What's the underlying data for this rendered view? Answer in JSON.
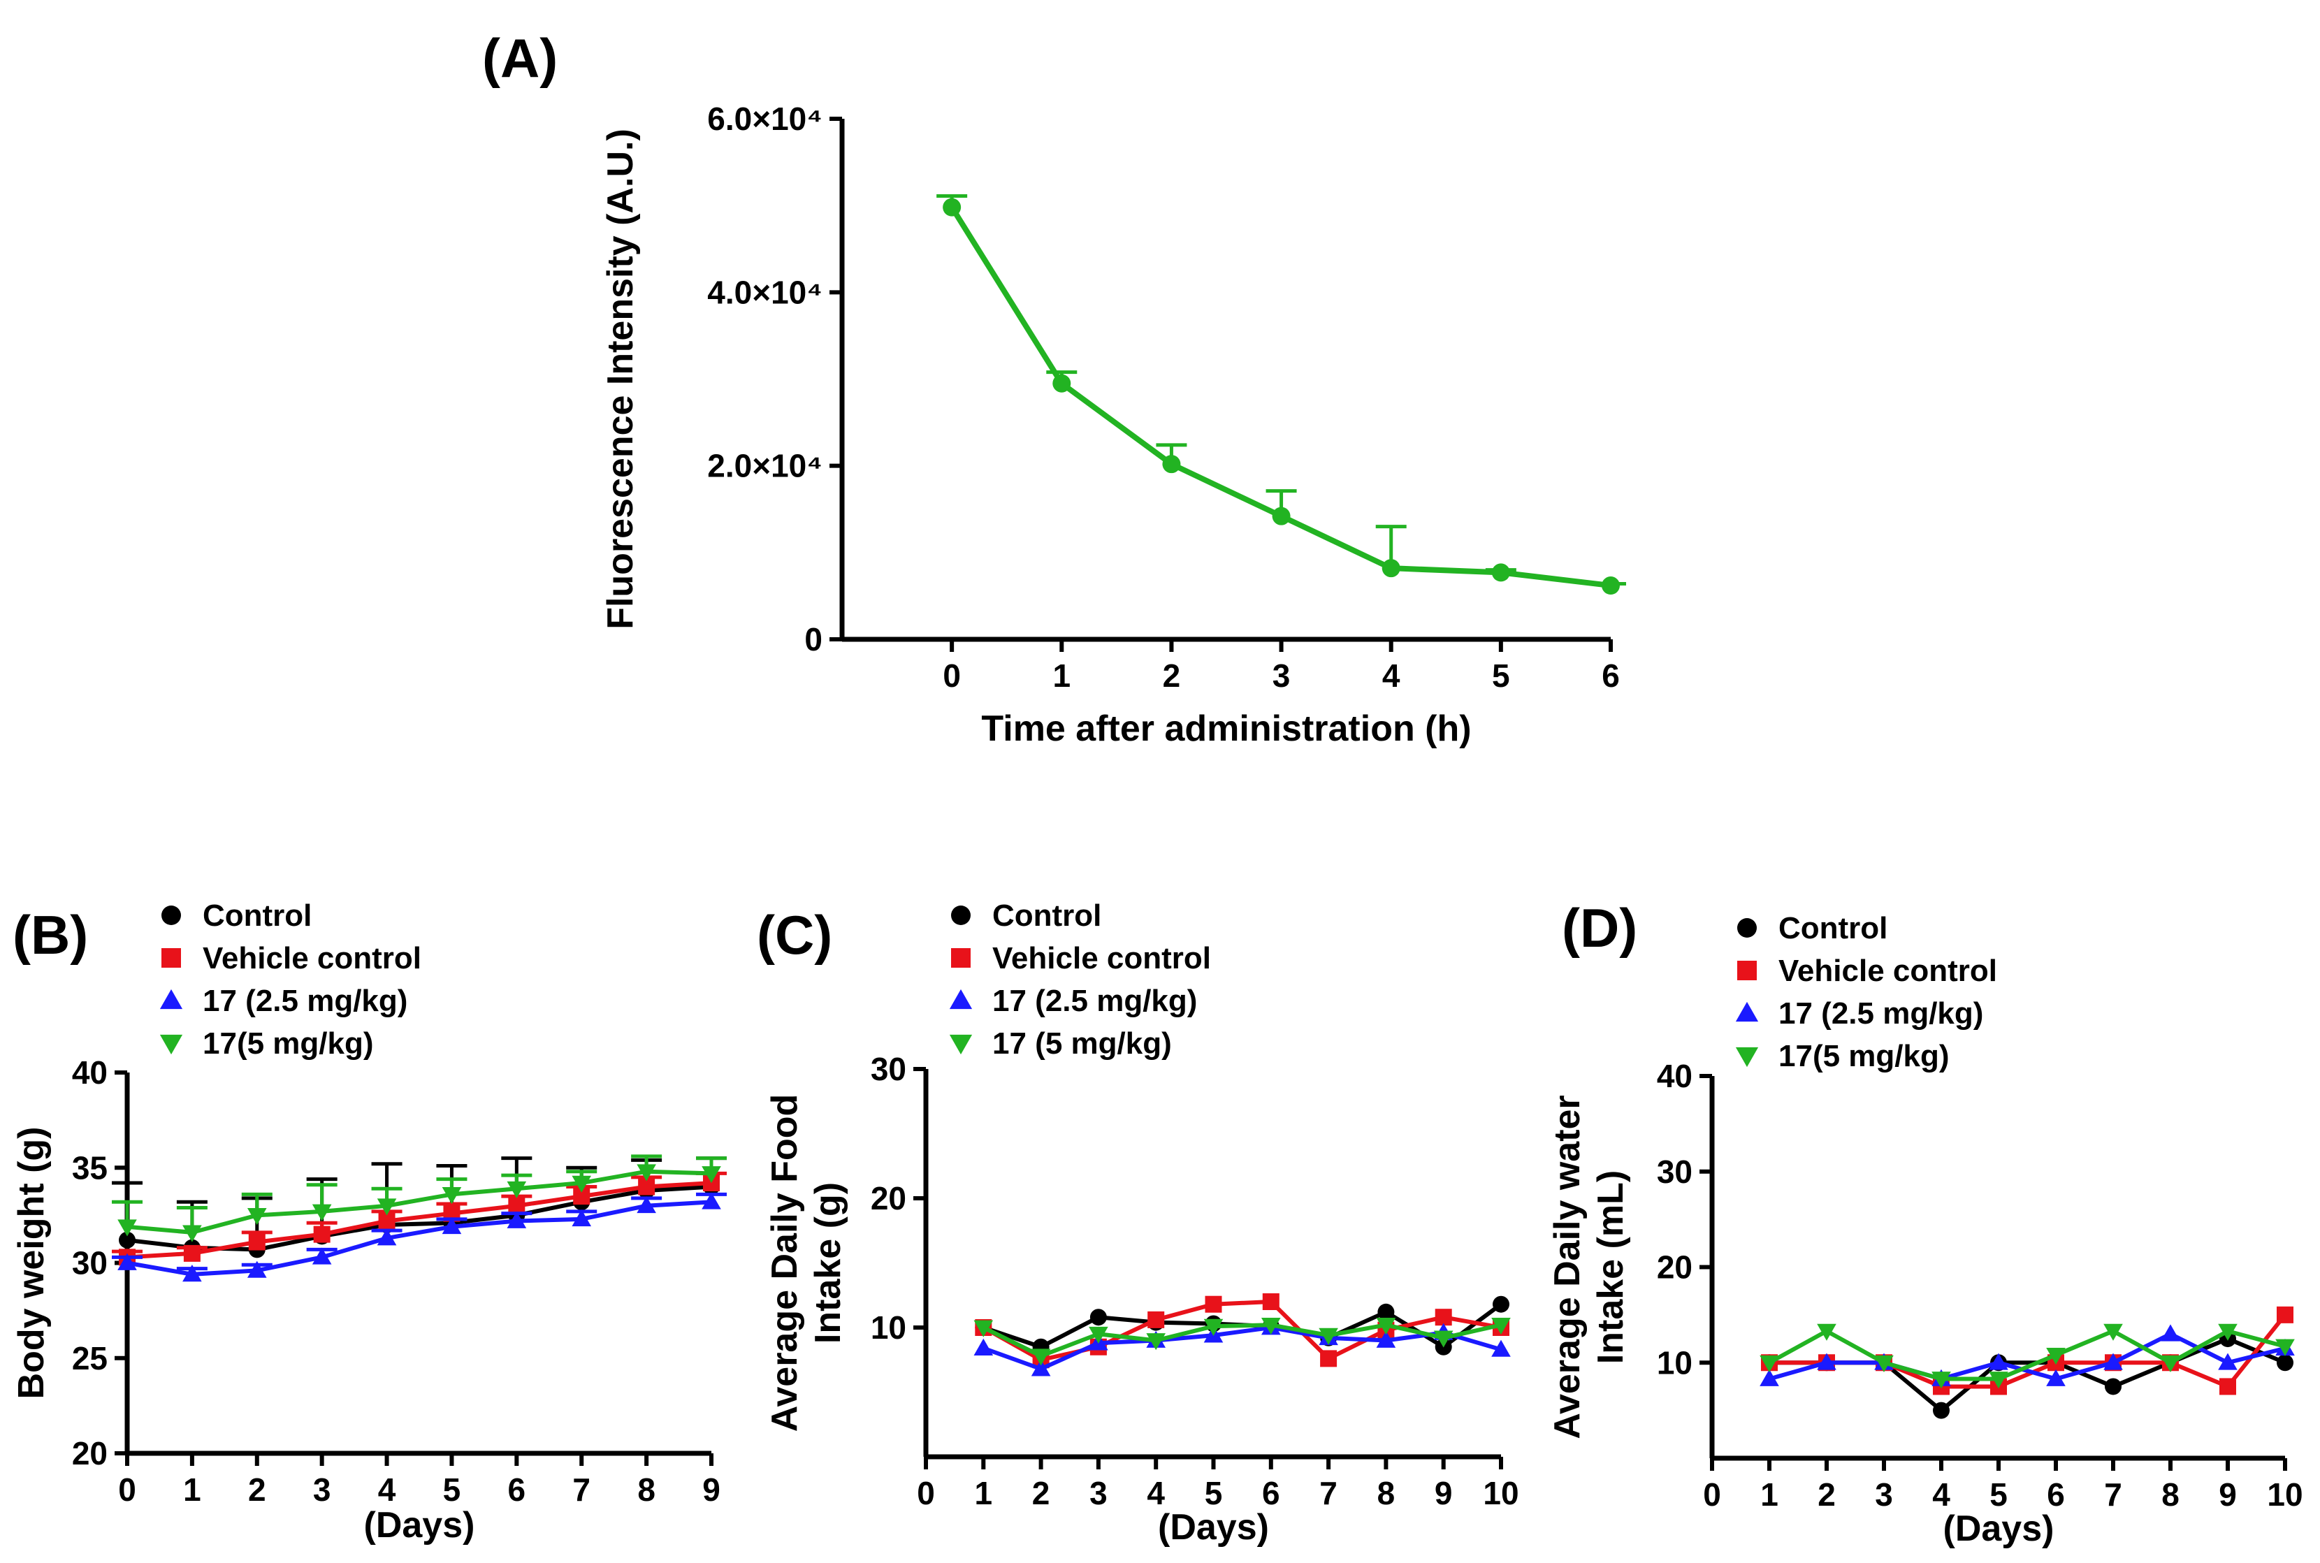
{
  "chart_data": [
    {
      "id": "A",
      "type": "line",
      "panel_label": "(A)",
      "title": "",
      "xlabel": "Time after administration (h)",
      "ylabel": "Fluorescence Intensity (A.U.)",
      "xlim": [
        -1,
        6
      ],
      "ylim": [
        0,
        60000
      ],
      "xticks": [
        0,
        1,
        2,
        3,
        4,
        5,
        6
      ],
      "yticks": [
        0,
        20000,
        40000,
        60000
      ],
      "ytick_labels": [
        "0",
        "2.0×10⁴",
        "4.0×10⁴",
        "6.0×10⁴"
      ],
      "series": [
        {
          "name": "Fluorescence",
          "color": "#22b322",
          "marker": "circle",
          "x": [
            0,
            1,
            2,
            3,
            4,
            5,
            6
          ],
          "values": [
            49800,
            29500,
            20200,
            14200,
            8200,
            7700,
            6200
          ],
          "errors": [
            1300,
            1300,
            2200,
            2900,
            4800,
            300,
            200
          ]
        }
      ]
    },
    {
      "id": "B",
      "type": "line",
      "panel_label": "(B)",
      "xlabel": "(Days)",
      "ylabel": "Body weight (g)",
      "xlim": [
        0,
        9
      ],
      "ylim": [
        20,
        40
      ],
      "xticks": [
        0,
        1,
        2,
        3,
        4,
        5,
        6,
        7,
        8,
        9
      ],
      "yticks": [
        20,
        25,
        30,
        35,
        40
      ],
      "legend": [
        "Control",
        "Vehicle control",
        "17 (2.5 mg/kg)",
        "17(5 mg/kg)"
      ],
      "series": [
        {
          "name": "Control",
          "color": "#000000",
          "marker": "circle",
          "x": [
            0,
            1,
            2,
            3,
            4,
            5,
            6,
            7,
            8,
            9
          ],
          "values": [
            31.2,
            30.8,
            30.7,
            31.4,
            32.0,
            32.1,
            32.5,
            33.2,
            33.8,
            34.0
          ],
          "errors": [
            3.0,
            2.4,
            2.7,
            3.0,
            3.2,
            3.0,
            3.0,
            1.8,
            1.6,
            1.5
          ]
        },
        {
          "name": "Vehicle control",
          "color": "#e8121a",
          "marker": "square",
          "x": [
            0,
            1,
            2,
            3,
            4,
            5,
            6,
            7,
            8,
            9
          ],
          "values": [
            30.3,
            30.5,
            31.1,
            31.5,
            32.2,
            32.6,
            33.0,
            33.5,
            34.0,
            34.2
          ],
          "errors": [
            0.3,
            0.3,
            0.5,
            0.6,
            0.5,
            0.5,
            0.5,
            0.5,
            0.5,
            0.5
          ]
        },
        {
          "name": "17 (2.5 mg/kg)",
          "color": "#1a1aff",
          "marker": "triangle-up",
          "x": [
            0,
            1,
            2,
            3,
            4,
            5,
            6,
            7,
            8,
            9
          ],
          "values": [
            30.0,
            29.4,
            29.6,
            30.3,
            31.3,
            31.9,
            32.2,
            32.3,
            33.0,
            33.2
          ],
          "errors": [
            0.3,
            0.3,
            0.3,
            0.4,
            0.4,
            0.4,
            0.4,
            0.4,
            0.4,
            0.4
          ]
        },
        {
          "name": "17(5 mg/kg)",
          "color": "#22b322",
          "marker": "triangle-down",
          "x": [
            0,
            1,
            2,
            3,
            4,
            5,
            6,
            7,
            8,
            9
          ],
          "values": [
            31.9,
            31.6,
            32.5,
            32.7,
            33.0,
            33.6,
            33.9,
            34.2,
            34.8,
            34.7
          ],
          "errors": [
            1.3,
            1.3,
            1.1,
            1.4,
            0.9,
            0.8,
            0.7,
            0.6,
            0.8,
            0.8
          ]
        }
      ]
    },
    {
      "id": "C",
      "type": "line",
      "panel_label": "(C)",
      "xlabel": "(Days)",
      "ylabel": "Average Daily Food Intake (g)",
      "ylabel_lines": [
        "Average Daily Food",
        "Intake (g)"
      ],
      "xlim": [
        0,
        10
      ],
      "ylim": [
        0,
        30
      ],
      "xticks": [
        0,
        1,
        2,
        3,
        4,
        5,
        6,
        7,
        8,
        9,
        10
      ],
      "yticks": [
        10,
        20,
        30
      ],
      "legend": [
        "Control",
        "Vehicle control",
        "17 (2.5 mg/kg)",
        "17 (5 mg/kg)"
      ],
      "series": [
        {
          "name": "Control",
          "color": "#000000",
          "marker": "circle",
          "x": [
            1,
            2,
            3,
            4,
            5,
            6,
            7,
            8,
            9,
            10
          ],
          "values": [
            10.0,
            8.5,
            10.8,
            10.4,
            10.3,
            10.1,
            9.2,
            11.2,
            8.5,
            11.8
          ]
        },
        {
          "name": "Vehicle control",
          "color": "#e8121a",
          "marker": "square",
          "x": [
            1,
            2,
            3,
            4,
            5,
            6,
            7,
            8,
            9,
            10
          ],
          "values": [
            10.0,
            7.5,
            8.5,
            10.6,
            11.8,
            12.0,
            7.6,
            9.8,
            10.8,
            10.0
          ]
        },
        {
          "name": "17 (2.5 mg/kg)",
          "color": "#1a1aff",
          "marker": "triangle-up",
          "x": [
            1,
            2,
            3,
            4,
            5,
            6,
            7,
            8,
            9,
            10
          ],
          "values": [
            8.4,
            6.8,
            8.8,
            9.0,
            9.4,
            10.0,
            9.2,
            9.0,
            9.6,
            8.3
          ]
        },
        {
          "name": "17 (5 mg/kg)",
          "color": "#22b322",
          "marker": "triangle-down",
          "x": [
            1,
            2,
            3,
            4,
            5,
            6,
            7,
            8,
            9,
            10
          ],
          "values": [
            10.0,
            7.8,
            9.5,
            9.0,
            10.1,
            10.2,
            9.4,
            10.2,
            9.2,
            10.2
          ]
        }
      ]
    },
    {
      "id": "D",
      "type": "line",
      "panel_label": "(D)",
      "xlabel": "(Days)",
      "ylabel": "Average Daily water Intake (mL)",
      "ylabel_lines": [
        "Average Daily water",
        "Intake (mL)"
      ],
      "xlim": [
        0,
        10
      ],
      "ylim": [
        0,
        40
      ],
      "xticks": [
        0,
        1,
        2,
        3,
        4,
        5,
        6,
        7,
        8,
        9,
        10
      ],
      "yticks": [
        10,
        20,
        30,
        40
      ],
      "legend": [
        "Control",
        "Vehicle control",
        "17 (2.5 mg/kg)",
        "17(5 mg/kg)"
      ],
      "series": [
        {
          "name": "Control",
          "color": "#000000",
          "marker": "circle",
          "x": [
            1,
            2,
            3,
            4,
            5,
            6,
            7,
            8,
            9,
            10
          ],
          "values": [
            10.0,
            10.0,
            10.0,
            5.0,
            10.0,
            10.0,
            7.5,
            10.0,
            12.5,
            10.0
          ]
        },
        {
          "name": "Vehicle control",
          "color": "#e8121a",
          "marker": "square",
          "x": [
            1,
            2,
            3,
            4,
            5,
            6,
            7,
            8,
            9,
            10
          ],
          "values": [
            10.0,
            10.0,
            10.0,
            7.5,
            7.5,
            10.0,
            10.0,
            10.0,
            7.5,
            15.0
          ]
        },
        {
          "name": "17 (2.5 mg/kg)",
          "color": "#1a1aff",
          "marker": "triangle-up",
          "x": [
            1,
            2,
            3,
            4,
            5,
            6,
            7,
            8,
            9,
            10
          ],
          "values": [
            8.3,
            10.0,
            10.0,
            8.3,
            10.0,
            8.3,
            10.0,
            13.0,
            10.0,
            11.5
          ]
        },
        {
          "name": "17(5 mg/kg)",
          "color": "#22b322",
          "marker": "triangle-down",
          "x": [
            1,
            2,
            3,
            4,
            5,
            6,
            7,
            8,
            9,
            10
          ],
          "values": [
            10.0,
            13.3,
            10.0,
            8.3,
            8.3,
            10.8,
            13.3,
            10.0,
            13.3,
            11.7
          ]
        }
      ]
    }
  ]
}
